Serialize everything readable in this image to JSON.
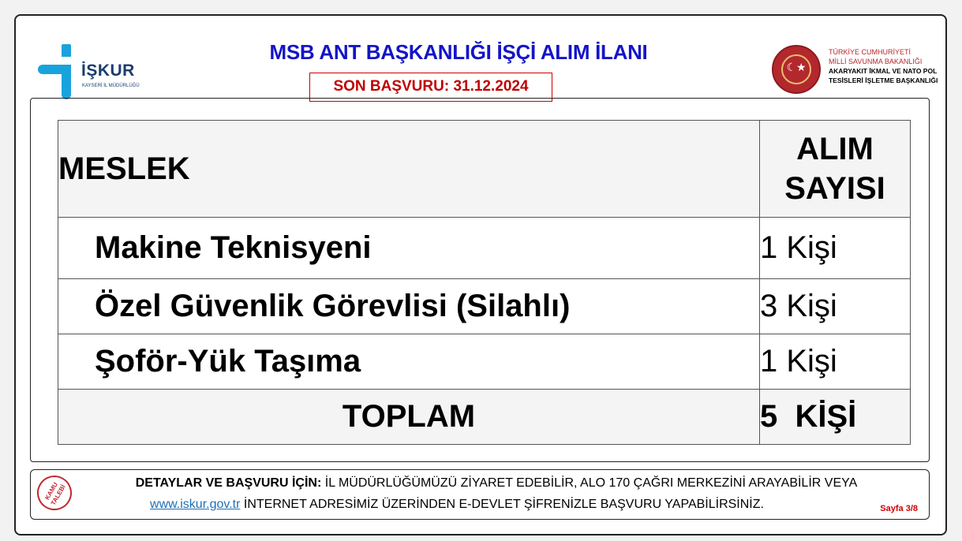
{
  "header": {
    "iskur_logo": {
      "name": "İŞKUR",
      "subtitle": "KAYSERİ İL MÜDÜRLÜĞÜ",
      "color": "#19a3dc"
    },
    "title": "MSB ANT BAŞKANLIĞI İŞÇİ ALIM İLANI",
    "deadline": "SON BAŞVURU: 31.12.2024",
    "msb_logo": {
      "line1": "TÜRKİYE CUMHURİYETİ",
      "line2": "MİLLİ SAVUNMA BAKANLIĞI",
      "line3": "AKARYAKIT İKMAL VE NATO POL",
      "line4": "TESİSLERİ İŞLETME BAŞKANLIĞI",
      "seal_text": "ANT"
    }
  },
  "table": {
    "headers": {
      "col1": "MESLEK",
      "col2_line1": "ALIM",
      "col2_line2": "SAYISI"
    },
    "rows": [
      {
        "meslek": "Makine Teknisyeni",
        "sayi": "1 Kişi"
      },
      {
        "meslek": "Özel Güvenlik Görevlisi (Silahlı)",
        "sayi": "3 Kişi"
      },
      {
        "meslek": "Şoför-Yük Taşıma",
        "sayi": "1 Kişi"
      }
    ],
    "total": {
      "label": "TOPLAM",
      "value": "5  KİŞİ"
    }
  },
  "footer": {
    "badge": "KAMU TALEBİ",
    "lead": "DETAYLAR VE BAŞVURU İÇİN:",
    "line1": " İL MÜDÜRLÜĞÜMÜZÜ ZİYARET EDEBİLİR, ALO 170 ÇAĞRI MERKEZİNİ ARAYABİLİR VEYA",
    "link": "www.iskur.gov.tr",
    "line2": " İNTERNET ADRESİMİZ ÜZERİNDEN E-DEVLET ŞİFRENİZLE BAŞVURU YAPABİLİRSİNİZ.",
    "page": "Sayfa 3/8"
  },
  "colors": {
    "title": "#1414c8",
    "deadline": "#c00000",
    "link": "#1f6fb4"
  }
}
